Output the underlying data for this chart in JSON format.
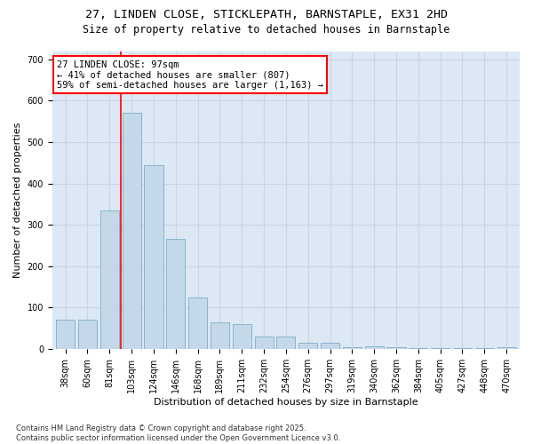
{
  "title_line1": "27, LINDEN CLOSE, STICKLEPATH, BARNSTAPLE, EX31 2HD",
  "title_line2": "Size of property relative to detached houses in Barnstaple",
  "xlabel": "Distribution of detached houses by size in Barnstaple",
  "ylabel": "Number of detached properties",
  "categories": [
    "38sqm",
    "60sqm",
    "81sqm",
    "103sqm",
    "124sqm",
    "146sqm",
    "168sqm",
    "189sqm",
    "211sqm",
    "232sqm",
    "254sqm",
    "276sqm",
    "297sqm",
    "319sqm",
    "340sqm",
    "362sqm",
    "384sqm",
    "405sqm",
    "427sqm",
    "448sqm",
    "470sqm"
  ],
  "values": [
    70,
    70,
    335,
    570,
    445,
    265,
    125,
    65,
    60,
    30,
    30,
    15,
    15,
    5,
    7,
    5,
    2,
    2,
    2,
    2,
    5
  ],
  "bar_color": "#c5d8ea",
  "bar_edge_color": "#7baec8",
  "vline_color": "red",
  "annotation_text": "27 LINDEN CLOSE: 97sqm\n← 41% of detached houses are smaller (807)\n59% of semi-detached houses are larger (1,163) →",
  "annotation_box_color": "white",
  "annotation_box_edge_color": "red",
  "ylim": [
    0,
    720
  ],
  "yticks": [
    0,
    100,
    200,
    300,
    400,
    500,
    600,
    700
  ],
  "grid_color": "#c8d4e4",
  "background_color": "#dce8f4",
  "footnote": "Contains HM Land Registry data © Crown copyright and database right 2025.\nContains public sector information licensed under the Open Government Licence v3.0.",
  "title_fontsize": 9.5,
  "subtitle_fontsize": 8.5,
  "axis_label_fontsize": 8,
  "tick_fontsize": 7,
  "annotation_fontsize": 7.5,
  "footnote_fontsize": 6
}
